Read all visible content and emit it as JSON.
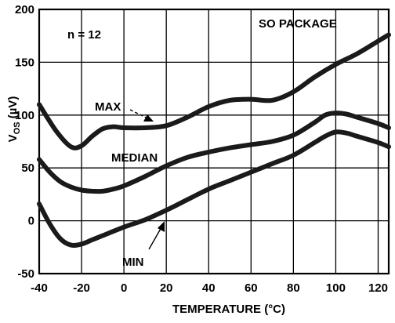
{
  "chart_data": {
    "type": "line",
    "xlabel": "TEMPERATURE (°C)",
    "ylabel_main": "V",
    "ylabel_sub": "OS",
    "ylabel_unit": " (µV)",
    "xlim": [
      -40,
      125
    ],
    "ylim": [
      -50,
      200
    ],
    "xticks": [
      -40,
      -20,
      0,
      20,
      40,
      60,
      80,
      100,
      120
    ],
    "yticks": [
      200,
      150,
      100,
      50,
      0,
      -50
    ],
    "grid": true,
    "annotations": {
      "n": "n = 12",
      "package": "SO PACKAGE"
    },
    "series": [
      {
        "name": "MAX",
        "x": [
          -40,
          -32,
          -25,
          -20,
          -15,
          -10,
          -5,
          0,
          10,
          20,
          30,
          40,
          50,
          60,
          70,
          80,
          90,
          100,
          110,
          120,
          125
        ],
        "values": [
          110,
          85,
          70,
          71,
          80,
          87,
          89,
          88,
          88,
          90,
          98,
          108,
          114,
          115,
          114,
          122,
          136,
          148,
          158,
          170,
          176
        ]
      },
      {
        "name": "MEDIAN",
        "x": [
          -40,
          -35,
          -30,
          -25,
          -20,
          -15,
          -10,
          -5,
          0,
          10,
          20,
          30,
          40,
          50,
          60,
          70,
          80,
          90,
          95,
          100,
          105,
          110,
          120,
          125
        ],
        "values": [
          58,
          46,
          37,
          32,
          29,
          28,
          28,
          30,
          33,
          42,
          52,
          60,
          65,
          69,
          72,
          75,
          81,
          93,
          100,
          102,
          101,
          98,
          92,
          88
        ]
      },
      {
        "name": "MIN",
        "x": [
          -40,
          -35,
          -30,
          -25,
          -20,
          -15,
          -10,
          0,
          10,
          20,
          30,
          40,
          50,
          60,
          70,
          80,
          90,
          95,
          100,
          105,
          110,
          120,
          125
        ],
        "values": [
          16,
          -3,
          -17,
          -23,
          -22,
          -18,
          -14,
          -6,
          1,
          10,
          20,
          30,
          38,
          46,
          54,
          62,
          74,
          80,
          84,
          83,
          80,
          74,
          70
        ]
      }
    ]
  }
}
